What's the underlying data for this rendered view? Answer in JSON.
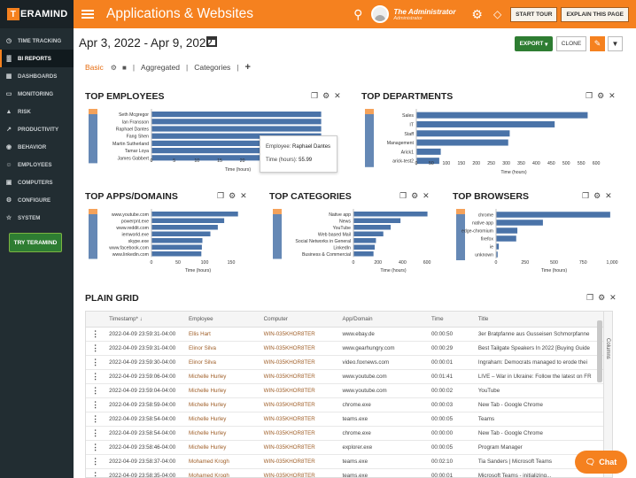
{
  "brand": {
    "logo_letter": "T",
    "logo_text": "ERAMIND",
    "accent": "#f5811f",
    "sidebar_bg": "#222d32",
    "bar_color": "#4a73a8"
  },
  "sidebar": {
    "items": [
      {
        "label": "TIME TRACKING",
        "icon": "clock-icon"
      },
      {
        "label": "BI REPORTS",
        "icon": "chart-icon",
        "active": true
      },
      {
        "label": "DASHBOARDS",
        "icon": "dashboard-icon"
      },
      {
        "label": "MONITORING",
        "icon": "monitor-icon"
      },
      {
        "label": "RISK",
        "icon": "risk-icon"
      },
      {
        "label": "PRODUCTIVITY",
        "icon": "productivity-icon"
      },
      {
        "label": "BEHAVIOR",
        "icon": "behavior-icon"
      },
      {
        "label": "EMPLOYEES",
        "icon": "employees-icon"
      },
      {
        "label": "COMPUTERS",
        "icon": "computer-icon"
      },
      {
        "label": "CONFIGURE",
        "icon": "configure-icon"
      },
      {
        "label": "SYSTEM",
        "icon": "system-icon"
      }
    ],
    "try_button": "TRY TERAMIND"
  },
  "topbar": {
    "title": "Applications & Websites",
    "user_name": "The Administrator",
    "user_role": "Administrator",
    "start_tour": "START TOUR",
    "explain": "EXPLAIN THIS PAGE"
  },
  "toolbar": {
    "date_range": "Apr 3, 2022 - Apr 9, 2022",
    "export": "EXPORT",
    "clone": "CLONE"
  },
  "tabs": [
    "Basic",
    "Aggregated",
    "Categories"
  ],
  "panels": {
    "employees": {
      "title": "TOP EMPLOYEES",
      "tooltip_employee_label": "Employee:",
      "tooltip_employee": "Raphael Dantes",
      "tooltip_time_label": "Time (hours):",
      "tooltip_time": "55.99"
    },
    "departments": {
      "title": "TOP DEPARTMENTS"
    },
    "apps": {
      "title": "TOP APPS/DOMAINS"
    },
    "categories": {
      "title": "TOP CATEGORIES"
    },
    "browsers": {
      "title": "TOP BROWSERS"
    }
  },
  "chart_data": [
    {
      "type": "bar",
      "orientation": "horizontal",
      "title": "TOP EMPLOYEES",
      "xlabel": "Time (hours)",
      "xlim": [
        0,
        50
      ],
      "xticks": [
        0,
        5,
        10,
        15,
        20,
        25,
        30,
        35
      ],
      "categories": [
        "Seth Mcgregor",
        "Ian Fransson",
        "Raphael Dantes",
        "Fang Shen",
        "Martin Sutherland",
        "Tamar Loya",
        "James Gabbert"
      ],
      "values": [
        57,
        56.5,
        55.99,
        55.5,
        55,
        54.5,
        54
      ]
    },
    {
      "type": "bar",
      "orientation": "horizontal",
      "title": "TOP DEPARTMENTS",
      "xlabel": "Time (hours)",
      "xlim": [
        0,
        650
      ],
      "xticks": [
        0,
        50,
        100,
        150,
        200,
        250,
        300,
        350,
        400,
        450,
        500,
        550,
        600
      ],
      "categories": [
        "Sales",
        "IT",
        "Staff",
        "Management",
        "Arick1",
        "arick-test2"
      ],
      "values": [
        570,
        460,
        310,
        305,
        80,
        75
      ]
    },
    {
      "type": "bar",
      "orientation": "horizontal",
      "title": "TOP APPS/DOMAINS",
      "xlabel": "Time (hours)",
      "xlim": [
        0,
        175
      ],
      "xticks": [
        0,
        50,
        100,
        150
      ],
      "categories": [
        "www.youtube.com",
        "powerpnt.exe",
        "www.reddit.com",
        "iemworld.exe",
        "skype.exe",
        "www.facebook.com",
        "www.linkedin.com"
      ],
      "values": [
        162,
        136,
        124,
        110,
        95,
        94,
        93
      ]
    },
    {
      "type": "bar",
      "orientation": "horizontal",
      "title": "TOP CATEGORIES",
      "xlabel": "Time (hours)",
      "xlim": [
        0,
        650
      ],
      "xticks": [
        0,
        200,
        400,
        600
      ],
      "categories": [
        "Native app",
        "News",
        "YouTube",
        "Web based Mail",
        "Social Networks in General",
        "LinkedIn",
        "Business & Commercial"
      ],
      "values": [
        600,
        380,
        300,
        240,
        180,
        170,
        160
      ]
    },
    {
      "type": "bar",
      "orientation": "horizontal",
      "title": "TOP BROWSERS",
      "xlabel": "Time (hours)",
      "xlim": [
        0,
        1000
      ],
      "xticks": [
        "0",
        "250",
        "500",
        "750",
        "1,000"
      ],
      "categories": [
        "chrome",
        "native app",
        "edge-chromium",
        "firefox",
        "ie",
        "unknown"
      ],
      "values": [
        980,
        400,
        180,
        170,
        20,
        10
      ]
    }
  ],
  "grid": {
    "title": "PLAIN GRID",
    "columns_tab": "Columns",
    "headers": [
      "Timestamp",
      "Employee",
      "Computer",
      "App/Domain",
      "Time",
      "Title"
    ],
    "rows": [
      [
        "2022-04-09 23:59:31-04:00",
        "Ellis Hart",
        "WIN-035KHOR8TER",
        "www.ebay.de",
        "00:00:50",
        "3er Bratpfanne aus Gusseisen Schmorpfanne"
      ],
      [
        "2022-04-09 23:59:31-04:00",
        "Elinor Silva",
        "WIN-035KHOR8TER",
        "www.gearhungry.com",
        "00:00:29",
        "Best Tailgate Speakers In 2022 [Buying Guide"
      ],
      [
        "2022-04-09 23:59:30-04:00",
        "Elinor Silva",
        "WIN-035KHOR8TER",
        "video.foxnews.com",
        "00:00:01",
        "Ingraham: Democrats managed to erode thei"
      ],
      [
        "2022-04-09 23:59:06-04:00",
        "Michelle Hurley",
        "WIN-035KHOR8TER",
        "www.youtube.com",
        "00:01:41",
        "LIVE – War in Ukraine: Follow the latest on FR"
      ],
      [
        "2022-04-09 23:59:04-04:00",
        "Michelle Hurley",
        "WIN-035KHOR8TER",
        "www.youtube.com",
        "00:00:02",
        "YouTube"
      ],
      [
        "2022-04-09 23:58:59-04:00",
        "Michelle Hurley",
        "WIN-035KHOR8TER",
        "chrome.exe",
        "00:00:03",
        "New Tab - Google Chrome"
      ],
      [
        "2022-04-09 23:58:54-04:00",
        "Michelle Hurley",
        "WIN-035KHOR8TER",
        "teams.exe",
        "00:00:05",
        "Teams"
      ],
      [
        "2022-04-09 23:58:54-04:00",
        "Michelle Hurley",
        "WIN-035KHOR8TER",
        "chrome.exe",
        "00:00:00",
        "New Tab - Google Chrome"
      ],
      [
        "2022-04-09 23:58:46-04:00",
        "Michelle Hurley",
        "WIN-035KHOR8TER",
        "explorer.exe",
        "00:00:05",
        "Program Manager"
      ],
      [
        "2022-04-09 23:58:37-04:00",
        "Mohamed Krogh",
        "WIN-035KHOR8TER",
        "teams.exe",
        "00:02:10",
        "Tia Sanders | Microsoft Teams"
      ],
      [
        "2022-04-09 23:58:35-04:00",
        "Mohamed Krogh",
        "WIN-035KHOR8TER",
        "teams.exe",
        "00:00:01",
        "Microsoft Teams - initializing..."
      ]
    ]
  },
  "chat": {
    "label": "Chat"
  }
}
